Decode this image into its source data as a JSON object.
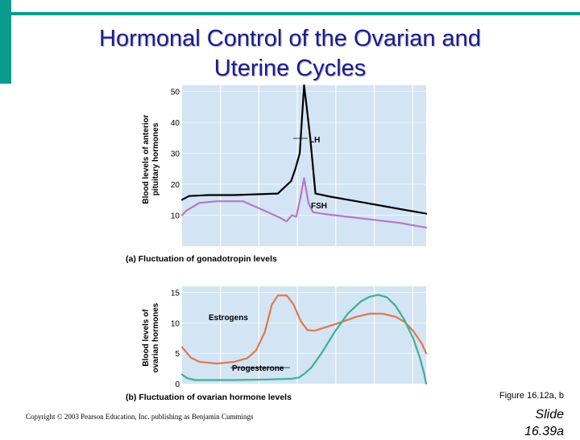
{
  "slide": {
    "title_line1": "Hormonal Control of the Ovarian and",
    "title_line2": "Uterine Cycles",
    "figure_ref": "Figure 16.12a, b",
    "copyright": "Copyright © 2003 Pearson Education, Inc. publishing as Benjamin Cummings",
    "slide_label": "Slide",
    "slide_number": "16.39a"
  },
  "colors": {
    "accent": "#0a9a8e",
    "plot_bg": "#d3e4f4",
    "lh": "#000000",
    "fsh": "#b877c4",
    "estrogens": "#e07848",
    "progesterone": "#3daf94"
  },
  "chart_data": [
    {
      "type": "line",
      "title": "(a)  Fluctuation of gonadotropin levels",
      "ylabel": [
        "Blood levels of anterior",
        "pituitary hormones"
      ],
      "xlabel": "",
      "xlim": [
        0,
        28
      ],
      "ylim": [
        0,
        52
      ],
      "yticks": [
        10,
        20,
        30,
        40,
        50
      ],
      "grid": true,
      "series": [
        {
          "name": "LH",
          "color": "#000000",
          "points": [
            [
              0,
              15
            ],
            [
              0.8,
              16.2
            ],
            [
              3,
              16.5
            ],
            [
              6,
              16.5
            ],
            [
              9,
              16.8
            ],
            [
              11,
              17
            ],
            [
              12.5,
              21
            ],
            [
              13,
              25
            ],
            [
              13.5,
              30
            ],
            [
              14,
              52
            ],
            [
              14.3,
              45
            ],
            [
              14.7,
              35
            ],
            [
              15.3,
              17
            ],
            [
              17,
              16
            ],
            [
              20,
              14.5
            ],
            [
              23,
              13
            ],
            [
              26,
              11.5
            ],
            [
              28,
              10.5
            ]
          ]
        },
        {
          "name": "FSH",
          "color": "#b877c4",
          "points": [
            [
              0,
              10
            ],
            [
              0.5,
              11.5
            ],
            [
              2,
              14
            ],
            [
              4,
              14.5
            ],
            [
              7,
              14.5
            ],
            [
              9,
              12
            ],
            [
              11,
              9.5
            ],
            [
              12,
              8
            ],
            [
              12.6,
              10
            ],
            [
              13.1,
              9.5
            ],
            [
              13.6,
              16
            ],
            [
              14,
              22
            ],
            [
              14.5,
              14
            ],
            [
              15,
              11
            ],
            [
              16,
              10.5
            ],
            [
              19,
              9.5
            ],
            [
              22,
              8.5
            ],
            [
              25,
              7.5
            ],
            [
              28,
              6
            ]
          ]
        }
      ]
    },
    {
      "type": "line",
      "title": "(b)  Fluctuation of ovarian hormone levels",
      "ylabel": [
        "Blood levels of",
        "ovarian hormones"
      ],
      "xlabel": "",
      "xlim": [
        0,
        28
      ],
      "ylim": [
        0,
        16
      ],
      "yticks": [
        0,
        5,
        10,
        15
      ],
      "grid": true,
      "series": [
        {
          "name": "Estrogens",
          "color": "#e07848",
          "points": [
            [
              0,
              6
            ],
            [
              1,
              4.3
            ],
            [
              2,
              3.6
            ],
            [
              4,
              3.3
            ],
            [
              6,
              3.6
            ],
            [
              7.5,
              4.2
            ],
            [
              8.5,
              5.5
            ],
            [
              9.5,
              8.5
            ],
            [
              10.3,
              13
            ],
            [
              11,
              14.5
            ],
            [
              12,
              14.5
            ],
            [
              12.8,
              13
            ],
            [
              13.6,
              10.3
            ],
            [
              14.4,
              8.8
            ],
            [
              15.2,
              8.7
            ],
            [
              16.5,
              9.3
            ],
            [
              18,
              10
            ],
            [
              20,
              11
            ],
            [
              21.5,
              11.5
            ],
            [
              23,
              11.5
            ],
            [
              24.5,
              11
            ],
            [
              25.5,
              10.2
            ],
            [
              26.5,
              8.7
            ],
            [
              27.5,
              6.6
            ],
            [
              28,
              5
            ]
          ]
        },
        {
          "name": "Progesterone",
          "color": "#3daf94",
          "points": [
            [
              0,
              1.5
            ],
            [
              0.6,
              0.9
            ],
            [
              1.5,
              0.6
            ],
            [
              6,
              0.6
            ],
            [
              10,
              0.7
            ],
            [
              12.5,
              0.8
            ],
            [
              13.4,
              1
            ],
            [
              14,
              1.6
            ],
            [
              14.8,
              2.6
            ],
            [
              16,
              5
            ],
            [
              17.5,
              8.5
            ],
            [
              19,
              11.5
            ],
            [
              20.5,
              13.5
            ],
            [
              21.5,
              14.3
            ],
            [
              22.5,
              14.6
            ],
            [
              23.5,
              14.2
            ],
            [
              24.5,
              12.8
            ],
            [
              25.5,
              10.5
            ],
            [
              26.5,
              7.5
            ],
            [
              27.3,
              4.2
            ],
            [
              27.8,
              1.5
            ],
            [
              28,
              0
            ]
          ]
        }
      ]
    }
  ]
}
